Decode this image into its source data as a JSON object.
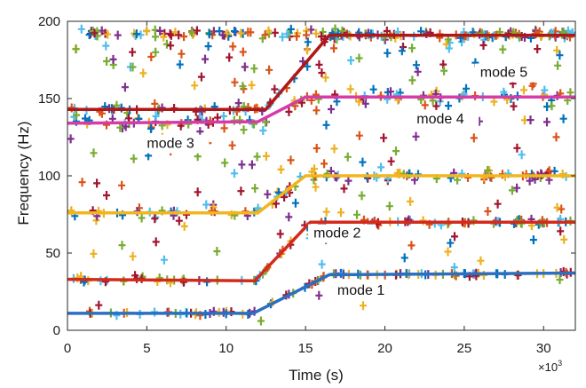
{
  "chart_data": {
    "type": "scatter",
    "xlabel": "Time (s)",
    "ylabel": "Frequency (Hz)",
    "x_multiplier_label": "×10",
    "x_multiplier_exponent": "3",
    "xlim": [
      0,
      32
    ],
    "ylim": [
      0,
      200
    ],
    "x_ticks": [
      0,
      5,
      10,
      15,
      20,
      25,
      30
    ],
    "y_ticks": [
      0,
      50,
      100,
      150,
      200
    ],
    "grid": false,
    "legend": "none",
    "marker_colors": [
      "#0072bd",
      "#d95319",
      "#edb120",
      "#7e2f8e",
      "#77ac30",
      "#4dbeee",
      "#a2142f"
    ],
    "scatter_marker": "+",
    "scatter_points_note": "",
    "mode_lines": [
      {
        "label": "mode 1",
        "color": "#2a6fc0",
        "x": [
          0,
          11.7,
          16.5,
          32
        ],
        "y": [
          11,
          11,
          36,
          37
        ],
        "label_pos": [
          17,
          23
        ]
      },
      {
        "label": "mode 2",
        "color": "#d42a1c",
        "x": [
          0,
          11.8,
          15.3,
          32
        ],
        "y": [
          33,
          32,
          70,
          70
        ],
        "label_pos": [
          15.5,
          60
        ]
      },
      {
        "label": "mode 3",
        "color": "#f2b51e",
        "x": [
          0,
          12,
          15,
          32
        ],
        "y": [
          76,
          76,
          100,
          100
        ],
        "label_pos": [
          5,
          118
        ]
      },
      {
        "label": "mode 4",
        "color": "#d63ba8",
        "x": [
          0,
          12,
          15,
          32
        ],
        "y": [
          134,
          135,
          151,
          151
        ],
        "label_pos": [
          22,
          134
        ]
      },
      {
        "label": "mode 5",
        "color": "#b01818",
        "x": [
          0,
          12.5,
          16.5,
          32
        ],
        "y": [
          143,
          143,
          191,
          191
        ],
        "label_pos": [
          26,
          164
        ]
      }
    ]
  }
}
